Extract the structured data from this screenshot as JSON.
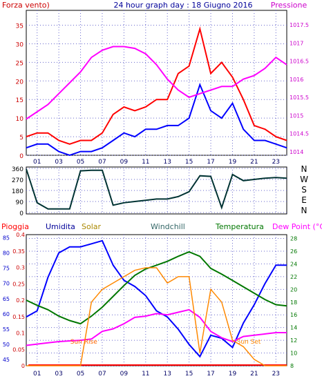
{
  "title": "24 hour graph day : 18 Giugno 2016",
  "hour_ticks": [
    "01",
    "03",
    "05",
    "07",
    "09",
    "11",
    "13",
    "15",
    "17",
    "19",
    "21",
    "23"
  ],
  "colors": {
    "wind": "#ff0000",
    "wind_avg": "#0000ff",
    "pressure": "#ff00ff",
    "direction": "#003333",
    "rain": "#ff0000",
    "humidity": "#0000ff",
    "solar": "#ff8800",
    "windchill": "#336666",
    "temperature": "#007700",
    "dewpoint": "#ff00ff",
    "grid": "#6666cc"
  },
  "chart_data": [
    {
      "type": "line",
      "xlabel": "",
      "left_label": "Forza vento)",
      "right_label": "Pressione",
      "x_ticks": [
        "01",
        "03",
        "05",
        "07",
        "09",
        "11",
        "13",
        "15",
        "17",
        "19",
        "21",
        "23"
      ],
      "y_left_ticks": [
        "0",
        "5",
        "10",
        "15",
        "20",
        "25",
        "30",
        "35"
      ],
      "y_left_range": [
        0,
        39
      ],
      "y_right_ticks": [
        "1014",
        "1014.5",
        "1015",
        "1015.5",
        "1016",
        "1016.5",
        "1017",
        "1017.5"
      ],
      "y_right_range": [
        1013.9,
        1017.9
      ],
      "x": [
        0,
        1,
        2,
        3,
        4,
        5,
        6,
        7,
        8,
        9,
        10,
        11,
        12,
        13,
        14,
        15,
        16,
        17,
        18,
        19,
        20,
        21,
        22,
        23,
        24
      ],
      "series": [
        {
          "name": "Forza vento",
          "axis": "left",
          "values": [
            5,
            6,
            6,
            4,
            3,
            4,
            4,
            6,
            11,
            13,
            12,
            13,
            15,
            15,
            22,
            24,
            34,
            22,
            25,
            21,
            15,
            8,
            7,
            5,
            4
          ]
        },
        {
          "name": "avg",
          "axis": "left",
          "values": [
            2,
            3,
            3,
            1,
            0,
            1,
            1,
            2,
            4,
            6,
            5,
            7,
            7,
            8,
            8,
            10,
            19,
            12,
            10,
            14,
            7,
            4,
            4,
            3,
            2
          ]
        },
        {
          "name": "Pressione",
          "axis": "right",
          "values": [
            1014.9,
            1015.1,
            1015.3,
            1015.6,
            1015.9,
            1016.2,
            1016.6,
            1016.8,
            1016.9,
            1016.9,
            1016.85,
            1016.7,
            1016.4,
            1016.0,
            1015.7,
            1015.5,
            1015.6,
            1015.7,
            1015.8,
            1015.8,
            1016.0,
            1016.1,
            1016.3,
            1016.6,
            1016.4
          ]
        }
      ]
    },
    {
      "type": "line",
      "y_ticks": [
        "360",
        "270",
        "180",
        "90",
        "0"
      ],
      "y_range": [
        0,
        360
      ],
      "right_labels": [
        "N",
        "W",
        "S",
        "E",
        "N"
      ],
      "x": [
        0,
        1,
        2,
        3,
        4,
        5,
        6,
        7,
        8,
        9,
        10,
        11,
        12,
        13,
        14,
        15,
        16,
        17,
        18,
        19,
        20,
        21,
        22,
        23,
        24
      ],
      "series": [
        {
          "name": "direction",
          "values": [
            355,
            80,
            30,
            30,
            30,
            340,
            345,
            345,
            60,
            80,
            90,
            100,
            110,
            110,
            130,
            170,
            300,
            295,
            40,
            310,
            260,
            270,
            280,
            285,
            280
          ]
        }
      ]
    },
    {
      "type": "line",
      "labels": [
        "Pioggia",
        "Umidita",
        "Solar",
        "Windchill",
        "Temperatura",
        "Dew Point (°C)"
      ],
      "annotations": [
        "Sun Rise",
        "Sun Set"
      ],
      "y_rain_ticks": [
        "0",
        "0.05",
        "0.1",
        "0.15",
        "0.2",
        "0.25",
        "0.3",
        "0.35",
        "0.4"
      ],
      "y_rain_range": [
        0,
        0.4
      ],
      "y_hum_ticks": [
        "45",
        "50",
        "55",
        "60",
        "65",
        "70",
        "75",
        "80",
        "85"
      ],
      "y_hum_range": [
        43,
        86
      ],
      "y_temp_ticks": [
        "8",
        "10",
        "12",
        "14",
        "16",
        "18",
        "20",
        "22",
        "24",
        "26",
        "28"
      ],
      "y_temp_range": [
        8,
        28.6
      ],
      "x": [
        0,
        1,
        2,
        3,
        4,
        5,
        6,
        7,
        8,
        9,
        10,
        11,
        12,
        13,
        14,
        15,
        16,
        17,
        18,
        19,
        20,
        21,
        22,
        23,
        24
      ],
      "series": [
        {
          "name": "Umidita",
          "axis": "hum",
          "values": [
            59,
            61,
            72,
            80,
            82,
            82,
            83,
            84,
            76,
            71,
            69,
            66,
            61,
            59,
            55,
            50,
            46,
            53,
            52,
            49,
            57,
            63,
            70,
            76,
            76
          ]
        },
        {
          "name": "Temperatura",
          "axis": "temp",
          "values": [
            18.3,
            17.5,
            16.8,
            15.8,
            15.1,
            14.6,
            15.8,
            17.2,
            18.9,
            20.6,
            22.2,
            23.2,
            23.8,
            24.4,
            25.2,
            25.9,
            25.2,
            23.3,
            22.4,
            21.4,
            20.4,
            19.4,
            18.4,
            17.6,
            17.4
          ]
        },
        {
          "name": "Dew Point",
          "axis": "temp",
          "values": [
            11.2,
            11.4,
            11.6,
            11.8,
            11.9,
            12.0,
            12.2,
            13.4,
            13.8,
            14.6,
            15.6,
            15.8,
            16.2,
            16.0,
            16.4,
            16.8,
            15.6,
            13.4,
            12.4,
            11.8,
            12.6,
            12.8,
            13.0,
            13.2,
            13.2
          ]
        },
        {
          "name": "Solar",
          "axis": "temp",
          "values": [
            8,
            8,
            8,
            8,
            8,
            8,
            18,
            20,
            21,
            22,
            23,
            23.4,
            23.4,
            21,
            22,
            22,
            10,
            20,
            18,
            12,
            11,
            9,
            8,
            8,
            8
          ]
        }
      ]
    }
  ]
}
